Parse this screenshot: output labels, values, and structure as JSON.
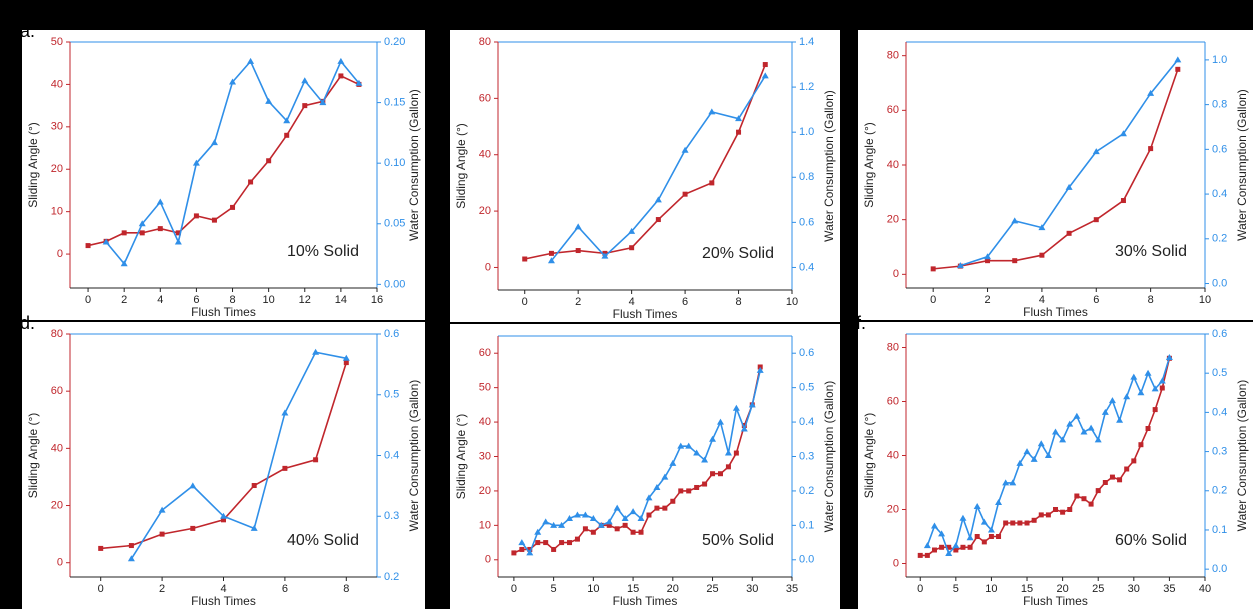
{
  "chart_data": [
    {
      "type": "line",
      "panel_label": "a.",
      "annotation": "10% Solid",
      "xlabel": "Flush Times",
      "ylabel": "Sliding Angle (°)",
      "y2label": "Water Consumption (Gallon)",
      "x": [
        0,
        1,
        2,
        3,
        4,
        5,
        6,
        7,
        8,
        9,
        10,
        11,
        12,
        13,
        14,
        15
      ],
      "xlim": [
        -1,
        16
      ],
      "xticks": [
        0,
        2,
        4,
        6,
        8,
        10,
        12,
        14,
        16
      ],
      "ylim": [
        -8,
        50
      ],
      "yticks": [
        0,
        10,
        20,
        30,
        40,
        50
      ],
      "y2lim": [
        -0.003,
        0.2
      ],
      "y2ticks": [
        {
          "value": 0,
          "label": "0.00"
        },
        0.05,
        {
          "value": 0.1,
          "label": "0.10"
        },
        0.15,
        {
          "value": 0.2,
          "label": "0.20"
        }
      ],
      "series": [
        {
          "color": "#c0262c",
          "marker": "square",
          "values": [
            2,
            3,
            5,
            5,
            6,
            5,
            9,
            8,
            11,
            17,
            22,
            28,
            35,
            36,
            42,
            40
          ]
        },
        {
          "color": "#2f8fe8",
          "marker": "triangle",
          "axis": "y2",
          "values": [
            null,
            0.035,
            0.017,
            0.05,
            0.068,
            0.035,
            0.1,
            0.117,
            0.167,
            0.184,
            0.151,
            0.135,
            0.168,
            0.15,
            0.184,
            0.166
          ]
        }
      ]
    },
    {
      "type": "line",
      "annotation": "20% Solid",
      "xlabel": "Flush Times",
      "ylabel": "Sliding Angle (°)",
      "y2label": "Water Consumption (Gallon)",
      "x": [
        0,
        1,
        2,
        3,
        4,
        5,
        6,
        7,
        8,
        9
      ],
      "xlim": [
        -1,
        10
      ],
      "xticks": [
        0,
        2,
        4,
        6,
        8,
        10
      ],
      "ylim": [
        -8,
        80
      ],
      "yticks": [
        0,
        20,
        40,
        60,
        80
      ],
      "y2lim": [
        0.3,
        1.4
      ],
      "y2ticks": [
        0.4,
        0.6,
        0.8,
        {
          "value": 1,
          "label": "1.0"
        },
        1.2,
        1.4
      ],
      "series": [
        {
          "color": "#c0262c",
          "marker": "square",
          "values": [
            3,
            5,
            6,
            5,
            7,
            17,
            26,
            30,
            48,
            72
          ]
        },
        {
          "color": "#2f8fe8",
          "marker": "triangle",
          "axis": "y2",
          "values": [
            null,
            0.43,
            0.58,
            0.45,
            0.56,
            0.7,
            0.92,
            1.09,
            1.06,
            1.25
          ]
        }
      ]
    },
    {
      "type": "line",
      "annotation": "30% Solid",
      "xlabel": "Flush Times",
      "ylabel": "Sliding Angle (°)",
      "y2label": "Water Consumption (Gallon)",
      "x": [
        0,
        1,
        2,
        3,
        4,
        5,
        6,
        7,
        8,
        9
      ],
      "xlim": [
        -1,
        10
      ],
      "xticks": [
        0,
        2,
        4,
        6,
        8,
        10
      ],
      "ylim": [
        -5,
        85
      ],
      "yticks": [
        0,
        20,
        40,
        60,
        80
      ],
      "y2lim": [
        -0.02,
        1.08
      ],
      "y2ticks": [
        {
          "value": 0,
          "label": "0.0"
        },
        0.2,
        0.4,
        0.6,
        0.8,
        {
          "value": 1,
          "label": "1.0"
        }
      ],
      "series": [
        {
          "color": "#c0262c",
          "marker": "square",
          "values": [
            2,
            3,
            5,
            5,
            7,
            15,
            20,
            27,
            46,
            75
          ]
        },
        {
          "color": "#2f8fe8",
          "marker": "triangle",
          "axis": "y2",
          "values": [
            null,
            0.08,
            0.12,
            0.28,
            0.25,
            0.43,
            0.59,
            0.67,
            0.85,
            1.0
          ]
        }
      ]
    },
    {
      "type": "line",
      "panel_label": "d.",
      "annotation": "40% Solid",
      "xlabel": "Flush Times",
      "ylabel": "Sliding Angle (°)",
      "y2label": "Water Consumption (Gallon)",
      "x": [
        0,
        1,
        2,
        3,
        4,
        5,
        6,
        7,
        8
      ],
      "xlim": [
        -1,
        9
      ],
      "xticks": [
        0,
        2,
        4,
        6,
        8
      ],
      "ylim": [
        -5,
        80
      ],
      "yticks": [
        0,
        20,
        40,
        60,
        80
      ],
      "y2lim": [
        0.2,
        0.6
      ],
      "y2ticks": [
        0.2,
        0.3,
        0.4,
        0.5,
        0.6
      ],
      "series": [
        {
          "color": "#c0262c",
          "marker": "square",
          "values": [
            5,
            6,
            10,
            12,
            15,
            27,
            33,
            36,
            70
          ]
        },
        {
          "color": "#2f8fe8",
          "marker": "triangle",
          "axis": "y2",
          "values": [
            null,
            0.23,
            0.31,
            0.35,
            0.3,
            0.28,
            0.47,
            0.57,
            0.56
          ]
        }
      ]
    },
    {
      "type": "line",
      "annotation": "50% Solid",
      "xlabel": "Flush Times",
      "ylabel": "Sliding Angle (°)",
      "y2label": "Water Consumption (Gallon)",
      "x": [
        0,
        1,
        2,
        3,
        4,
        5,
        6,
        7,
        8,
        9,
        10,
        11,
        12,
        13,
        14,
        15,
        16,
        17,
        18,
        19,
        20,
        21,
        22,
        23,
        24,
        25,
        26,
        27,
        28,
        29,
        30,
        31
      ],
      "xlim": [
        -2,
        35
      ],
      "xticks": [
        0,
        5,
        10,
        15,
        20,
        25,
        30,
        35
      ],
      "ylim": [
        -5,
        65
      ],
      "yticks": [
        0,
        10,
        20,
        30,
        40,
        50,
        60
      ],
      "y2lim": [
        -0.05,
        0.65
      ],
      "y2ticks": [
        {
          "value": 0,
          "label": "0.0"
        },
        0.1,
        0.2,
        0.3,
        0.4,
        0.5,
        0.6
      ],
      "series": [
        {
          "color": "#c0262c",
          "marker": "square",
          "values": [
            2,
            3,
            3,
            5,
            5,
            3,
            5,
            5,
            6,
            9,
            8,
            10,
            10,
            9,
            10,
            8,
            8,
            13,
            15,
            15,
            17,
            20,
            20,
            21,
            22,
            25,
            25,
            27,
            31,
            39,
            45,
            56
          ]
        },
        {
          "color": "#2f8fe8",
          "marker": "triangle",
          "axis": "y2",
          "values": [
            null,
            0.05,
            0.02,
            0.08,
            0.11,
            0.1,
            0.1,
            0.12,
            0.13,
            0.13,
            0.12,
            0.1,
            0.11,
            0.15,
            0.12,
            0.14,
            0.12,
            0.18,
            0.21,
            0.24,
            0.28,
            0.33,
            0.33,
            0.31,
            0.29,
            0.35,
            0.4,
            0.31,
            0.44,
            0.38,
            0.45,
            0.55
          ]
        }
      ]
    },
    {
      "type": "line",
      "panel_label": "f.",
      "annotation": "60% Solid",
      "xlabel": "Flush Times",
      "ylabel": "Sliding Angle (°)",
      "y2label": "Water Consumption (Gallon)",
      "x": [
        0,
        1,
        2,
        3,
        4,
        5,
        6,
        7,
        8,
        9,
        10,
        11,
        12,
        13,
        14,
        15,
        16,
        17,
        18,
        19,
        20,
        21,
        22,
        23,
        24,
        25,
        26,
        27,
        28,
        29,
        30,
        31,
        32,
        33,
        34,
        35
      ],
      "xlim": [
        -2,
        40
      ],
      "xticks": [
        0,
        5,
        10,
        15,
        20,
        25,
        30,
        35,
        40
      ],
      "ylim": [
        -5,
        85
      ],
      "yticks": [
        0,
        20,
        40,
        60,
        80
      ],
      "y2lim": [
        -0.02,
        0.6
      ],
      "y2ticks": [
        {
          "value": 0,
          "label": "0.0"
        },
        0.1,
        0.2,
        0.3,
        0.4,
        0.5,
        0.6
      ],
      "series": [
        {
          "color": "#c0262c",
          "marker": "square",
          "values": [
            3,
            3,
            5,
            6,
            6,
            5,
            6,
            6,
            10,
            8,
            10,
            10,
            15,
            15,
            15,
            15,
            16,
            18,
            18,
            20,
            19,
            20,
            25,
            24,
            22,
            27,
            30,
            32,
            31,
            35,
            38,
            44,
            50,
            57,
            65,
            76
          ]
        },
        {
          "color": "#2f8fe8",
          "marker": "triangle",
          "axis": "y2",
          "values": [
            null,
            0.06,
            0.11,
            0.09,
            0.04,
            0.06,
            0.13,
            0.08,
            0.16,
            0.12,
            0.1,
            0.17,
            0.22,
            0.22,
            0.27,
            0.3,
            0.28,
            0.32,
            0.29,
            0.35,
            0.33,
            0.37,
            0.39,
            0.35,
            0.36,
            0.33,
            0.4,
            0.43,
            0.38,
            0.44,
            0.49,
            0.45,
            0.5,
            0.46,
            0.48,
            0.54
          ]
        }
      ]
    }
  ]
}
